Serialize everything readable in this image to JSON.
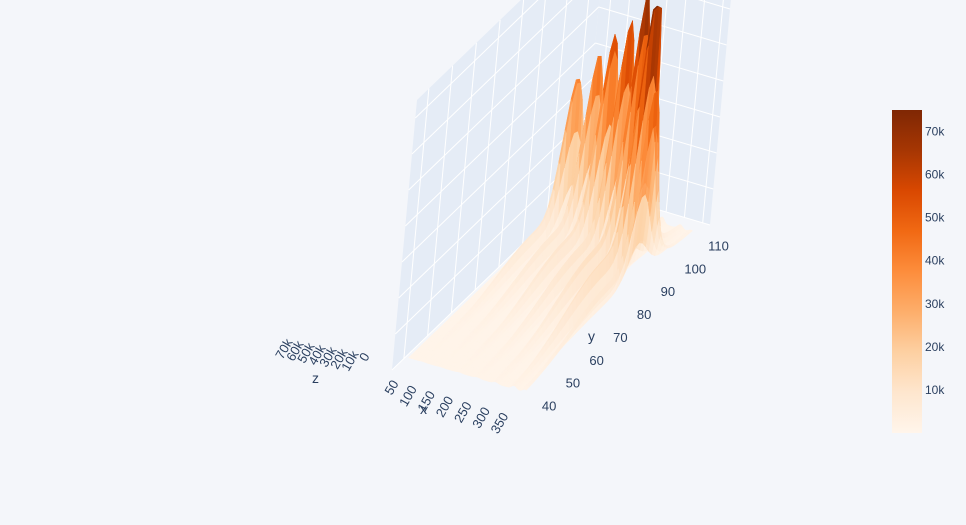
{
  "chart_data": {
    "type": "surface",
    "title": "",
    "colorscale": "Oranges",
    "colorscale_stops": [
      "#fff5eb",
      "#fee6ce",
      "#fdd0a2",
      "#fdae6b",
      "#fd8d3c",
      "#f16913",
      "#d94801",
      "#a63603",
      "#7f2704"
    ],
    "zmin": 0,
    "zmax": 75000,
    "x_axis": {
      "title": "x",
      "ticks": [
        "50",
        "100",
        "150",
        "200",
        "250",
        "300",
        "350"
      ],
      "range": [
        20,
        370
      ]
    },
    "y_axis": {
      "title": "y",
      "ticks": [
        "40",
        "50",
        "60",
        "70",
        "80",
        "90",
        "100",
        "110"
      ],
      "range": [
        35,
        115
      ]
    },
    "z_axis": {
      "title": "z",
      "ticks": [
        "0",
        "10k",
        "20k",
        "30k",
        "40k",
        "50k",
        "60k",
        "70k"
      ],
      "range": [
        0,
        75000
      ]
    },
    "colorbar": {
      "ticks": [
        "10k",
        "20k",
        "30k",
        "40k",
        "50k",
        "60k",
        "70k"
      ],
      "tick_values": [
        10000,
        20000,
        30000,
        40000,
        50000,
        60000,
        70000
      ]
    },
    "ridges": [
      {
        "x": 70,
        "peak_y": 100,
        "peak_z": 38000
      },
      {
        "x": 120,
        "peak_y": 100,
        "peak_z": 44000
      },
      {
        "x": 170,
        "peak_y": 98,
        "peak_z": 52000
      },
      {
        "x": 220,
        "peak_y": 96,
        "peak_z": 58000
      },
      {
        "x": 270,
        "peak_y": 94,
        "peak_z": 66000
      },
      {
        "x": 320,
        "peak_y": 90,
        "peak_z": 75000
      },
      {
        "x": 350,
        "peak_y": 88,
        "peak_z": 48000
      }
    ],
    "grid": true
  }
}
